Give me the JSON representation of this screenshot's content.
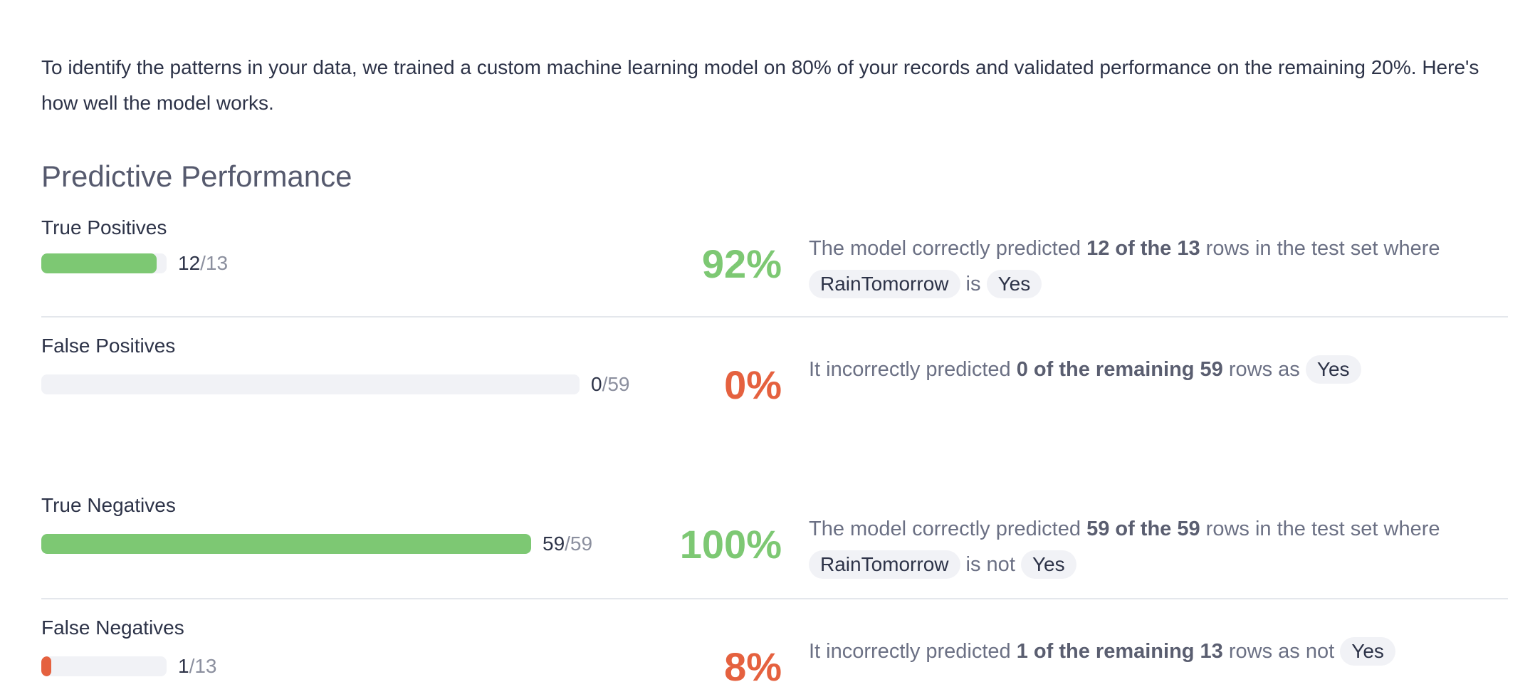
{
  "intro": "To identify the patterns in your data, we trained a custom machine learning model on 80% of your records and validated performance on the remaining 20%. Here's how well the model works.",
  "section_title": "Predictive Performance",
  "colors": {
    "good": "#7dc873",
    "bad": "#e5613f",
    "track": "#f1f2f6",
    "chip_bg": "#f1f2f6"
  },
  "metrics": [
    {
      "label": "True Positives",
      "num": "12",
      "den": "/13",
      "fraction": 0.923,
      "pct": "92%",
      "status": "good",
      "desc": {
        "pre": "The model correctly predicted ",
        "bold": "12 of the 13",
        "post": " rows in the test set where",
        "chip1": "RainTomorrow",
        "mid": " is ",
        "chip2": "Yes"
      }
    },
    {
      "label": "False Positives",
      "num": "0",
      "den": "/59",
      "fraction": 0.0,
      "pct": "0%",
      "status": "bad",
      "desc": {
        "pre": "It incorrectly predicted ",
        "bold": "0 of the remaining 59",
        "post": " rows as ",
        "chip1": "Yes"
      }
    },
    {
      "label": "True Negatives",
      "num": "59",
      "den": "/59",
      "fraction": 1.0,
      "pct": "100%",
      "status": "good",
      "desc": {
        "pre": "The model correctly predicted ",
        "bold": "59 of the 59",
        "post": " rows in the test set where",
        "chip1": "RainTomorrow",
        "mid": " is not ",
        "chip2": "Yes"
      }
    },
    {
      "label": "False Negatives",
      "num": "1",
      "den": "/13",
      "fraction": 0.077,
      "pct": "8%",
      "status": "bad",
      "desc": {
        "pre": "It incorrectly predicted ",
        "bold": "1 of the remaining 13",
        "post": " rows as not ",
        "chip1": "Yes"
      }
    }
  ]
}
